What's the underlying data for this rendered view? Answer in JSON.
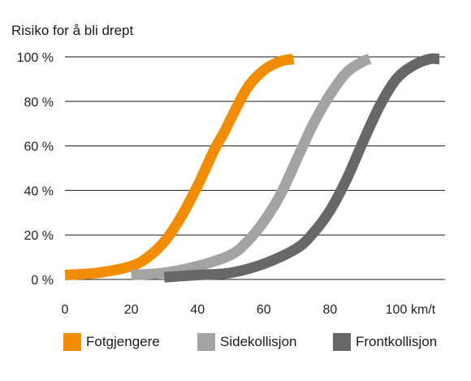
{
  "chart_data": {
    "type": "line",
    "ylabel": "Risiko for å bli drept",
    "x_unit": "km/t",
    "xlim": [
      0,
      115
    ],
    "ylim": [
      0,
      100
    ],
    "x_ticks": [
      0,
      20,
      40,
      60,
      80,
      100
    ],
    "y_ticks": [
      0,
      20,
      40,
      60,
      80,
      100
    ],
    "y_tick_labels": [
      "0 %",
      "20 %",
      "40 %",
      "60 %",
      "80 %",
      "100 %"
    ],
    "grid": "horizontal",
    "legend_position": "bottom",
    "series": [
      {
        "name": "Fotgjengere",
        "color": "#f28c00",
        "x": [
          0,
          10,
          20,
          25,
          30,
          35,
          40,
          45,
          48,
          50,
          55,
          60,
          65,
          69
        ],
        "y": [
          2,
          3,
          6,
          10,
          17,
          28,
          42,
          58,
          66,
          72,
          86,
          94,
          98,
          99
        ]
      },
      {
        "name": "Sidekollisjon",
        "color": "#a3a3a3",
        "x": [
          20,
          30,
          40,
          50,
          55,
          60,
          65,
          70,
          75,
          80,
          85,
          90,
          92
        ],
        "y": [
          2,
          3,
          6,
          11,
          17,
          26,
          38,
          54,
          70,
          83,
          93,
          98,
          99
        ]
      },
      {
        "name": "Frontkollisjon",
        "color": "#676767",
        "x": [
          30,
          40,
          50,
          60,
          70,
          75,
          80,
          85,
          90,
          95,
          100,
          105,
          110,
          113
        ],
        "y": [
          1,
          2,
          3,
          7,
          14,
          21,
          31,
          45,
          62,
          78,
          90,
          96,
          99,
          99
        ]
      }
    ]
  }
}
